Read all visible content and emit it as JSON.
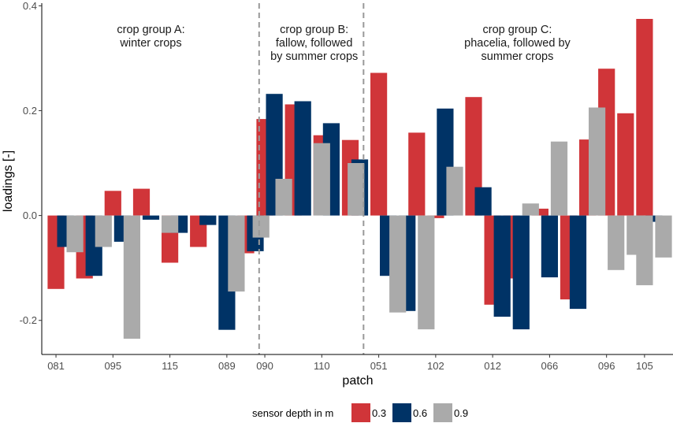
{
  "chart_data": {
    "type": "bar",
    "xlabel": "patch",
    "ylabel": "loadings [-]",
    "ylim": [
      -0.265,
      0.405
    ],
    "yticks": [
      0.4,
      0.2,
      0.0,
      -0.2
    ],
    "ytick_labels": [
      "0.4",
      "0.2",
      "0.0",
      "-0.2"
    ],
    "xtick_labels": [
      {
        "label": "081",
        "slot": 0
      },
      {
        "label": "095",
        "slot": 3
      },
      {
        "label": "115",
        "slot": 6
      },
      {
        "label": "089",
        "slot": 9
      },
      {
        "label": "090",
        "slot": 11
      },
      {
        "label": "110",
        "slot": 14
      },
      {
        "label": "051",
        "slot": 17
      },
      {
        "label": "102",
        "slot": 20
      },
      {
        "label": "012",
        "slot": 23
      },
      {
        "label": "066",
        "slot": 26
      },
      {
        "label": "096",
        "slot": 29
      },
      {
        "label": "105",
        "slot": 31
      }
    ],
    "n_slots": 33,
    "group_dividers_after_slot": [
      10.5,
      16.0
    ],
    "group_labels": [
      {
        "lines": [
          "crop group A:",
          "winter crops"
        ],
        "center_slot": 5.0
      },
      {
        "lines": [
          "crop group B:",
          "fallow, followed",
          "by summer crops"
        ],
        "center_slot": 13.6
      },
      {
        "lines": [
          "crop group C:",
          "phacelia, followed by",
          "summer crops"
        ],
        "center_slot": 24.3
      }
    ],
    "legend": {
      "title": "sensor depth in m",
      "entries": [
        {
          "label": "0.3",
          "color": "#d03539"
        },
        {
          "label": "0.6",
          "color": "#003366"
        },
        {
          "label": "0.9",
          "color": "#aaaaaa"
        }
      ],
      "position": "bottom"
    },
    "series": [
      {
        "name": "0.3",
        "color": "#d03539",
        "values": [
          -0.14,
          -0.12,
          0.047,
          0.051,
          -0.09,
          -0.06,
          null,
          -0.072,
          0.184,
          0.212,
          0.153,
          0.144,
          0.272,
          0.158,
          -0.005,
          0.226,
          -0.17,
          -0.12,
          0.013,
          -0.16,
          0.145,
          0.28,
          0.195,
          0.375
        ]
      },
      {
        "name": "0.6",
        "color": "#003366",
        "values": [
          -0.06,
          -0.115,
          -0.05,
          -0.008,
          -0.033,
          -0.018,
          -0.218,
          -0.068,
          0.232,
          0.218,
          0.176,
          0.107,
          -0.115,
          -0.182,
          0.204,
          0.054,
          -0.193,
          -0.217,
          -0.118,
          -0.178,
          null,
          null,
          null,
          -0.012
        ]
      },
      {
        "name": "0.9",
        "color": "#aaaaaa",
        "values": [
          -0.07,
          -0.06,
          -0.235,
          -0.033,
          null,
          -0.145,
          -0.042,
          0.07,
          0.138,
          0.1,
          -0.185,
          -0.217,
          0.093,
          0.023,
          0.141,
          0.206,
          -0.104,
          -0.075,
          -0.133,
          -0.08
        ]
      }
    ],
    "bar_slots": {
      "0.3": [
        0,
        1.5,
        3,
        4.5,
        6,
        7.5,
        null,
        10,
        11,
        12.5,
        14,
        15.5,
        17,
        19,
        20,
        22,
        23,
        24,
        25.5,
        27,
        28,
        29,
        30,
        31
      ],
      "0.6": [
        0.5,
        2,
        3.5,
        5,
        6.5,
        8,
        9,
        10.5,
        11.5,
        13,
        14.5,
        16,
        17.5,
        18.5,
        20.5,
        22.5,
        23.5,
        24.5,
        26,
        27.5,
        null,
        null,
        null,
        31.5
      ],
      "0.9": [
        1,
        2.5,
        4,
        6,
        null,
        9.5,
        10.8,
        12,
        14,
        15.8,
        18,
        19.5,
        21,
        25,
        26.5,
        28.5,
        29.5,
        30.5,
        31,
        32
      ]
    }
  }
}
